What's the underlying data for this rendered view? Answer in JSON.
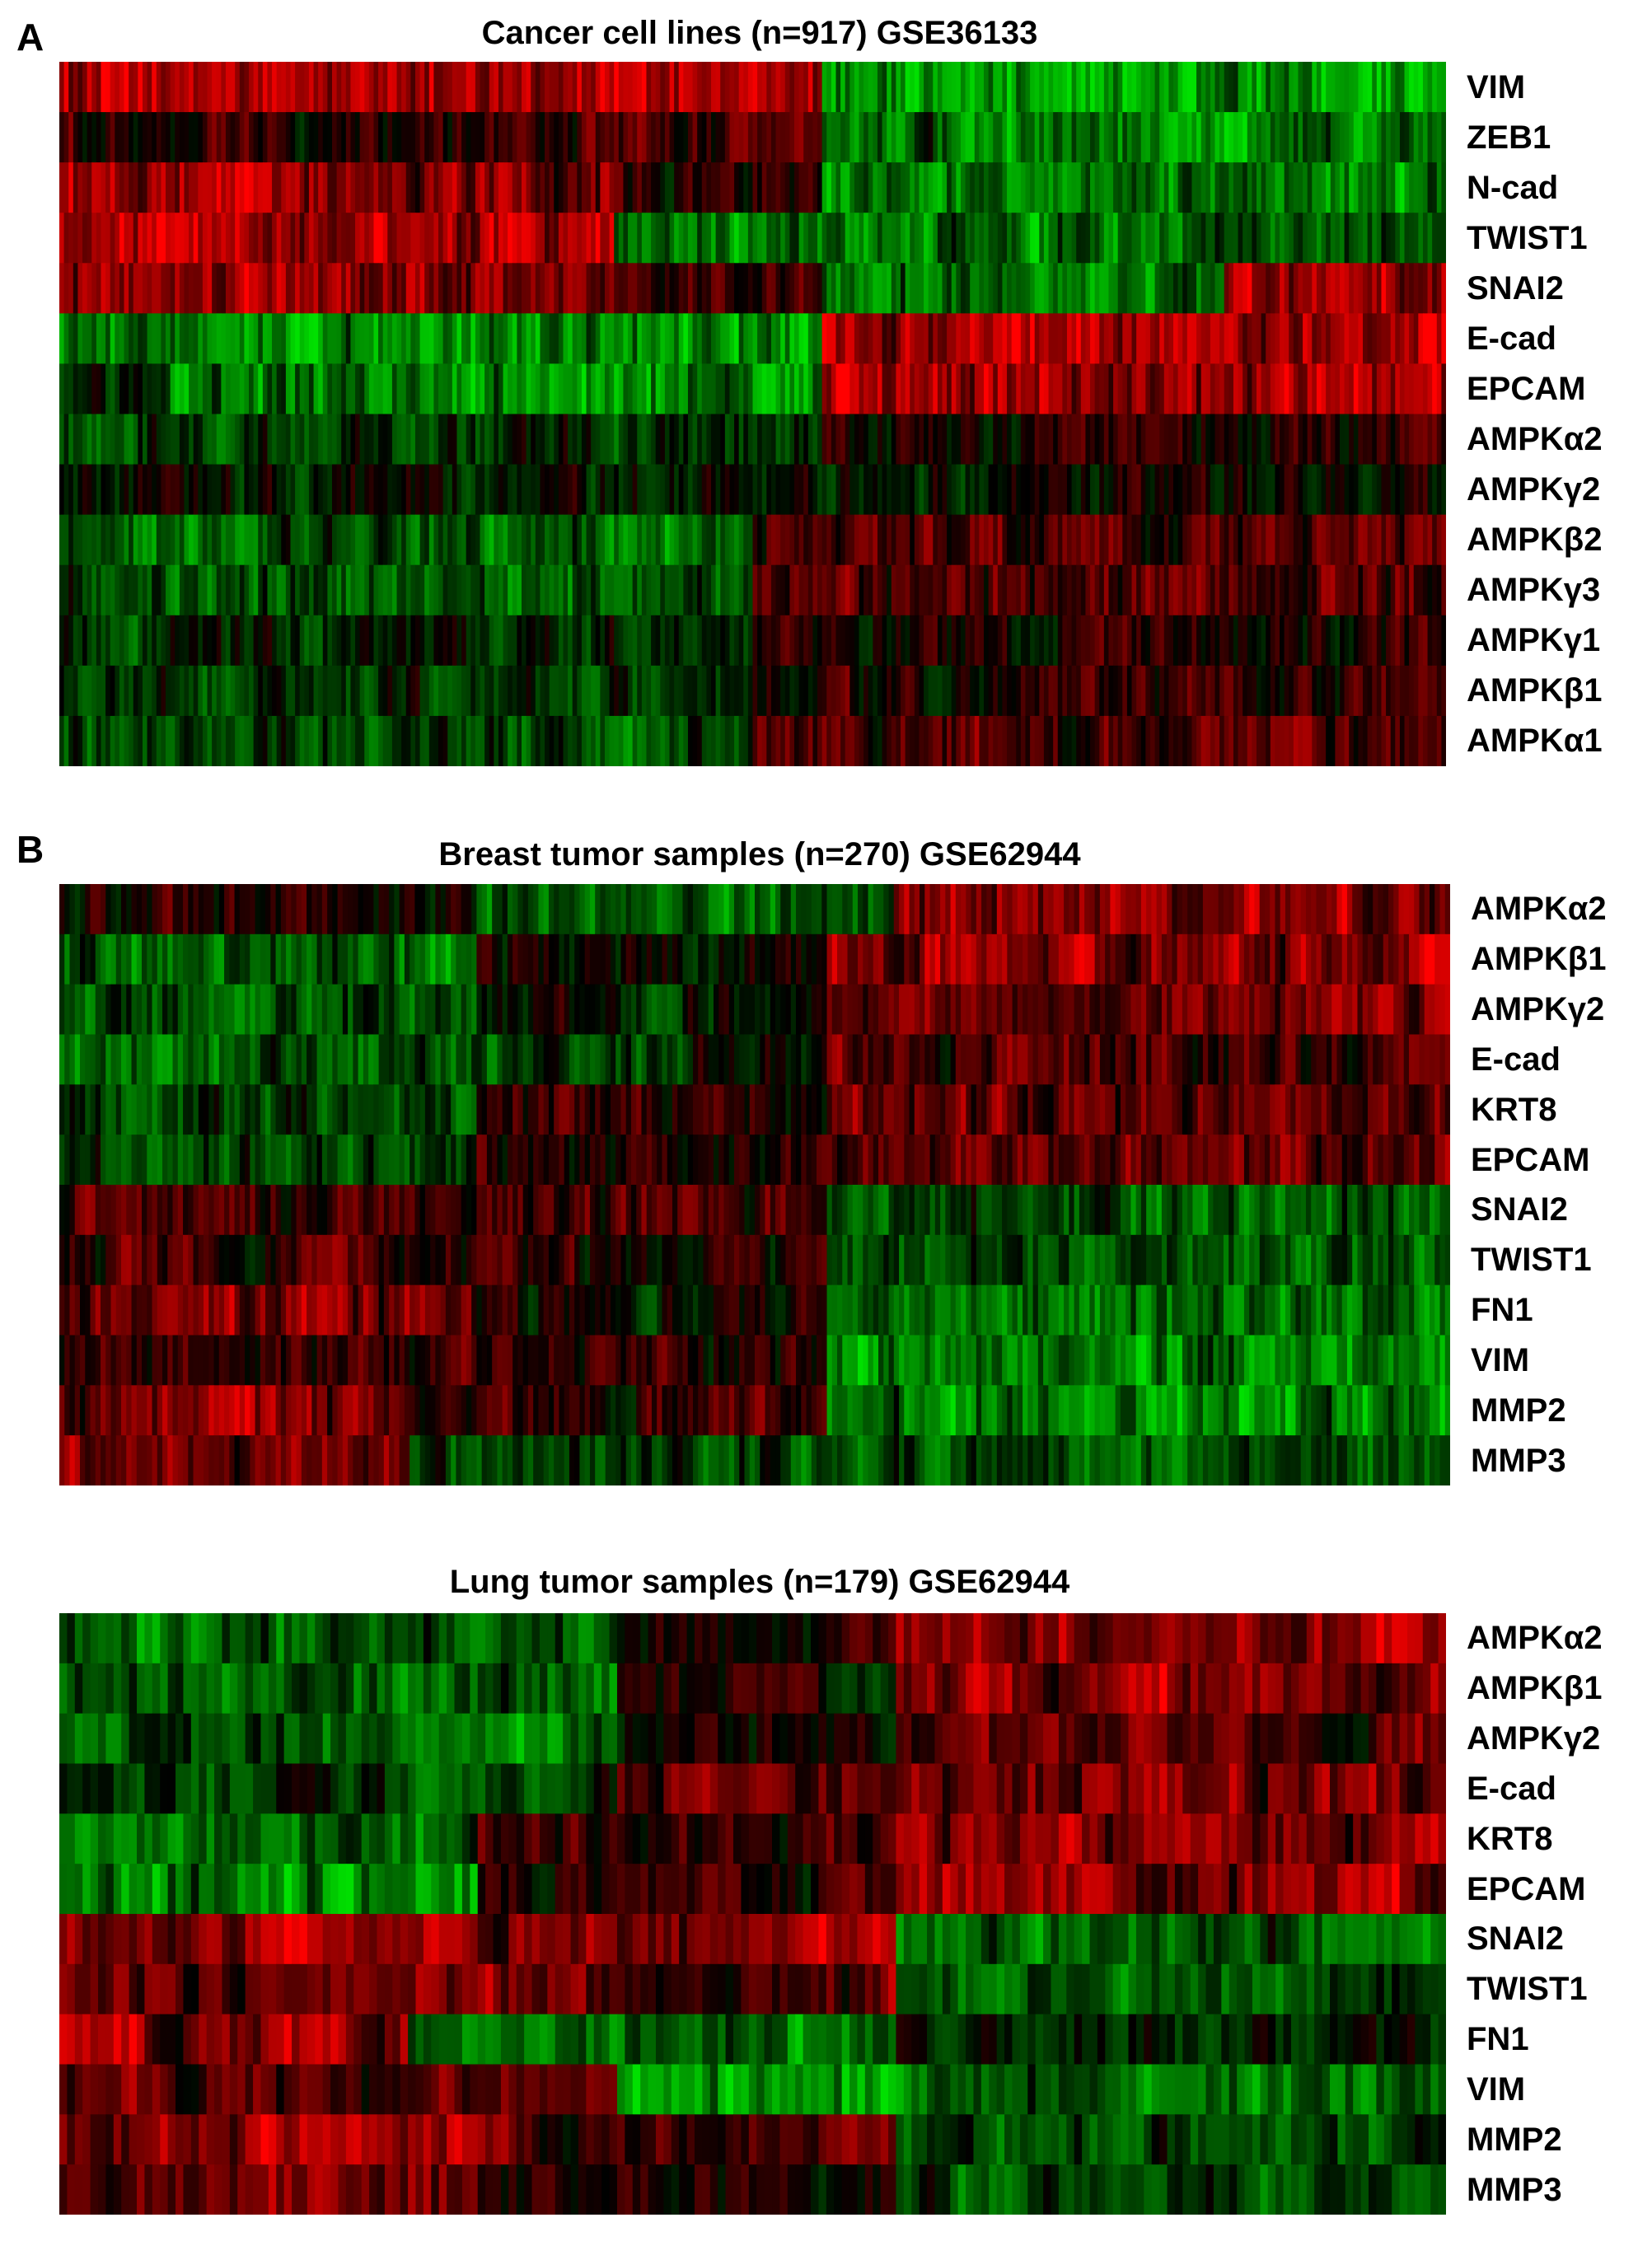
{
  "figure": {
    "panel_a_letter": "A",
    "panel_b_letter": "B"
  },
  "chart_data": [
    {
      "type": "heatmap",
      "title": "Cancer cell lines (n=917) GSE36133",
      "rows": [
        "VIM",
        "ZEB1",
        "N-cad",
        "TWIST1",
        "SNAI2",
        "E-cad",
        "EPCAM",
        "AMPKα2",
        "AMPKγ2",
        "AMPKβ2",
        "AMPKγ3",
        "AMPKγ1",
        "AMPKβ1",
        "AMPKα1"
      ],
      "n_columns": 917,
      "color_scale": {
        "low": "#00e000",
        "mid": "#000000",
        "high": "#ff0000"
      },
      "blocks": [
        [
          [
            0,
            0.55,
            0.75
          ],
          [
            0.55,
            1.0,
            -0.85
          ]
        ],
        [
          [
            0,
            0.55,
            0.25
          ],
          [
            0.55,
            1.0,
            -0.6
          ]
        ],
        [
          [
            0,
            0.4,
            0.6
          ],
          [
            0.4,
            0.55,
            0.2
          ],
          [
            0.55,
            1.0,
            -0.6
          ]
        ],
        [
          [
            0,
            0.4,
            0.75
          ],
          [
            0.4,
            0.82,
            -0.6
          ],
          [
            0.82,
            1.0,
            -0.4
          ]
        ],
        [
          [
            0,
            0.4,
            0.6
          ],
          [
            0.4,
            0.55,
            0.3
          ],
          [
            0.55,
            0.84,
            -0.6
          ],
          [
            0.84,
            1.0,
            0.7
          ]
        ],
        [
          [
            0,
            0.08,
            -0.6
          ],
          [
            0.08,
            0.55,
            -0.7
          ],
          [
            0.55,
            1.0,
            0.8
          ]
        ],
        [
          [
            0,
            0.08,
            -0.2
          ],
          [
            0.08,
            0.55,
            -0.65
          ],
          [
            0.55,
            1.0,
            0.7
          ]
        ],
        [
          [
            0,
            0.55,
            -0.3
          ],
          [
            0.55,
            1.0,
            0.1
          ]
        ],
        [
          [
            0,
            0.55,
            -0.1
          ],
          [
            0.55,
            1.0,
            0.0
          ]
        ],
        [
          [
            0,
            0.5,
            -0.5
          ],
          [
            0.5,
            1.0,
            0.3
          ]
        ],
        [
          [
            0,
            0.5,
            -0.4
          ],
          [
            0.5,
            1.0,
            0.4
          ]
        ],
        [
          [
            0,
            0.5,
            -0.2
          ],
          [
            0.5,
            1.0,
            0.1
          ]
        ],
        [
          [
            0,
            0.5,
            -0.2
          ],
          [
            0.5,
            1.0,
            0.2
          ]
        ],
        [
          [
            0,
            0.5,
            -0.3
          ],
          [
            0.5,
            1.0,
            0.3
          ]
        ]
      ]
    },
    {
      "type": "heatmap",
      "title": "Breast tumor samples (n=270)  GSE62944",
      "rows": [
        "AMPKα2",
        "AMPKβ1",
        "AMPKγ2",
        "E-cad",
        "KRT8",
        "EPCAM",
        "SNAI2",
        "TWIST1",
        "FN1",
        "VIM",
        "MMP2",
        "MMP3"
      ],
      "n_columns": 270,
      "color_scale": {
        "low": "#00e000",
        "mid": "#000000",
        "high": "#ff0000"
      },
      "blocks": [
        [
          [
            0,
            0.3,
            0.1
          ],
          [
            0.3,
            0.6,
            -0.4
          ],
          [
            0.6,
            1.0,
            0.6
          ]
        ],
        [
          [
            0,
            0.3,
            -0.5
          ],
          [
            0.3,
            0.55,
            0.0
          ],
          [
            0.55,
            1.0,
            0.6
          ]
        ],
        [
          [
            0,
            0.3,
            -0.4
          ],
          [
            0.3,
            0.55,
            -0.1
          ],
          [
            0.55,
            1.0,
            0.5
          ]
        ],
        [
          [
            0,
            0.45,
            -0.4
          ],
          [
            0.45,
            0.55,
            0.0
          ],
          [
            0.55,
            1.0,
            0.3
          ]
        ],
        [
          [
            0,
            0.3,
            -0.3
          ],
          [
            0.3,
            0.55,
            0.2
          ],
          [
            0.55,
            1.0,
            0.4
          ]
        ],
        [
          [
            0,
            0.3,
            -0.3
          ],
          [
            0.3,
            0.55,
            0.1
          ],
          [
            0.55,
            1.0,
            0.4
          ]
        ],
        [
          [
            0,
            0.35,
            0.3
          ],
          [
            0.35,
            0.55,
            0.3
          ],
          [
            0.55,
            1.0,
            -0.4
          ]
        ],
        [
          [
            0,
            0.35,
            0.3
          ],
          [
            0.35,
            0.55,
            0.1
          ],
          [
            0.55,
            1.0,
            -0.4
          ]
        ],
        [
          [
            0,
            0.3,
            0.5
          ],
          [
            0.3,
            0.55,
            0.0
          ],
          [
            0.55,
            1.0,
            -0.5
          ]
        ],
        [
          [
            0,
            0.25,
            0.3
          ],
          [
            0.25,
            0.55,
            0.2
          ],
          [
            0.55,
            1.0,
            -0.6
          ]
        ],
        [
          [
            0,
            0.25,
            0.5
          ],
          [
            0.25,
            0.55,
            0.2
          ],
          [
            0.55,
            1.0,
            -0.6
          ]
        ],
        [
          [
            0,
            0.25,
            0.4
          ],
          [
            0.25,
            0.55,
            -0.3
          ],
          [
            0.55,
            1.0,
            -0.4
          ]
        ]
      ]
    },
    {
      "type": "heatmap",
      "title": "Lung tumor samples (n=179)  GSE62944",
      "rows": [
        "AMPKα2",
        "AMPKβ1",
        "AMPKγ2",
        "E-cad",
        "KRT8",
        "EPCAM",
        "SNAI2",
        "TWIST1",
        "FN1",
        "VIM",
        "MMP2",
        "MMP3"
      ],
      "n_columns": 179,
      "color_scale": {
        "low": "#00e000",
        "mid": "#000000",
        "high": "#ff0000"
      },
      "blocks": [
        [
          [
            0,
            0.4,
            -0.5
          ],
          [
            0.4,
            0.6,
            0.1
          ],
          [
            0.6,
            1.0,
            0.6
          ]
        ],
        [
          [
            0,
            0.4,
            -0.5
          ],
          [
            0.4,
            0.6,
            0.0
          ],
          [
            0.6,
            1.0,
            0.6
          ]
        ],
        [
          [
            0,
            0.4,
            -0.5
          ],
          [
            0.4,
            0.6,
            0.0
          ],
          [
            0.6,
            1.0,
            0.4
          ]
        ],
        [
          [
            0,
            0.4,
            -0.3
          ],
          [
            0.4,
            0.6,
            0.4
          ],
          [
            0.6,
            1.0,
            0.5
          ]
        ],
        [
          [
            0,
            0.3,
            -0.5
          ],
          [
            0.3,
            0.6,
            0.2
          ],
          [
            0.6,
            1.0,
            0.5
          ]
        ],
        [
          [
            0,
            0.3,
            -0.7
          ],
          [
            0.3,
            0.6,
            0.2
          ],
          [
            0.6,
            1.0,
            0.6
          ]
        ],
        [
          [
            0,
            0.6,
            0.6
          ],
          [
            0.6,
            1.0,
            -0.5
          ]
        ],
        [
          [
            0,
            0.6,
            0.4
          ],
          [
            0.6,
            1.0,
            -0.4
          ]
        ],
        [
          [
            0,
            0.25,
            0.6
          ],
          [
            0.25,
            0.6,
            -0.6
          ],
          [
            0.6,
            1.0,
            -0.2
          ]
        ],
        [
          [
            0,
            0.4,
            0.4
          ],
          [
            0.4,
            0.6,
            -0.8
          ],
          [
            0.6,
            1.0,
            -0.5
          ]
        ],
        [
          [
            0,
            0.3,
            0.6
          ],
          [
            0.3,
            0.6,
            0.3
          ],
          [
            0.6,
            1.0,
            -0.4
          ]
        ],
        [
          [
            0,
            0.3,
            0.5
          ],
          [
            0.3,
            0.6,
            0.1
          ],
          [
            0.6,
            1.0,
            -0.4
          ]
        ]
      ]
    }
  ]
}
